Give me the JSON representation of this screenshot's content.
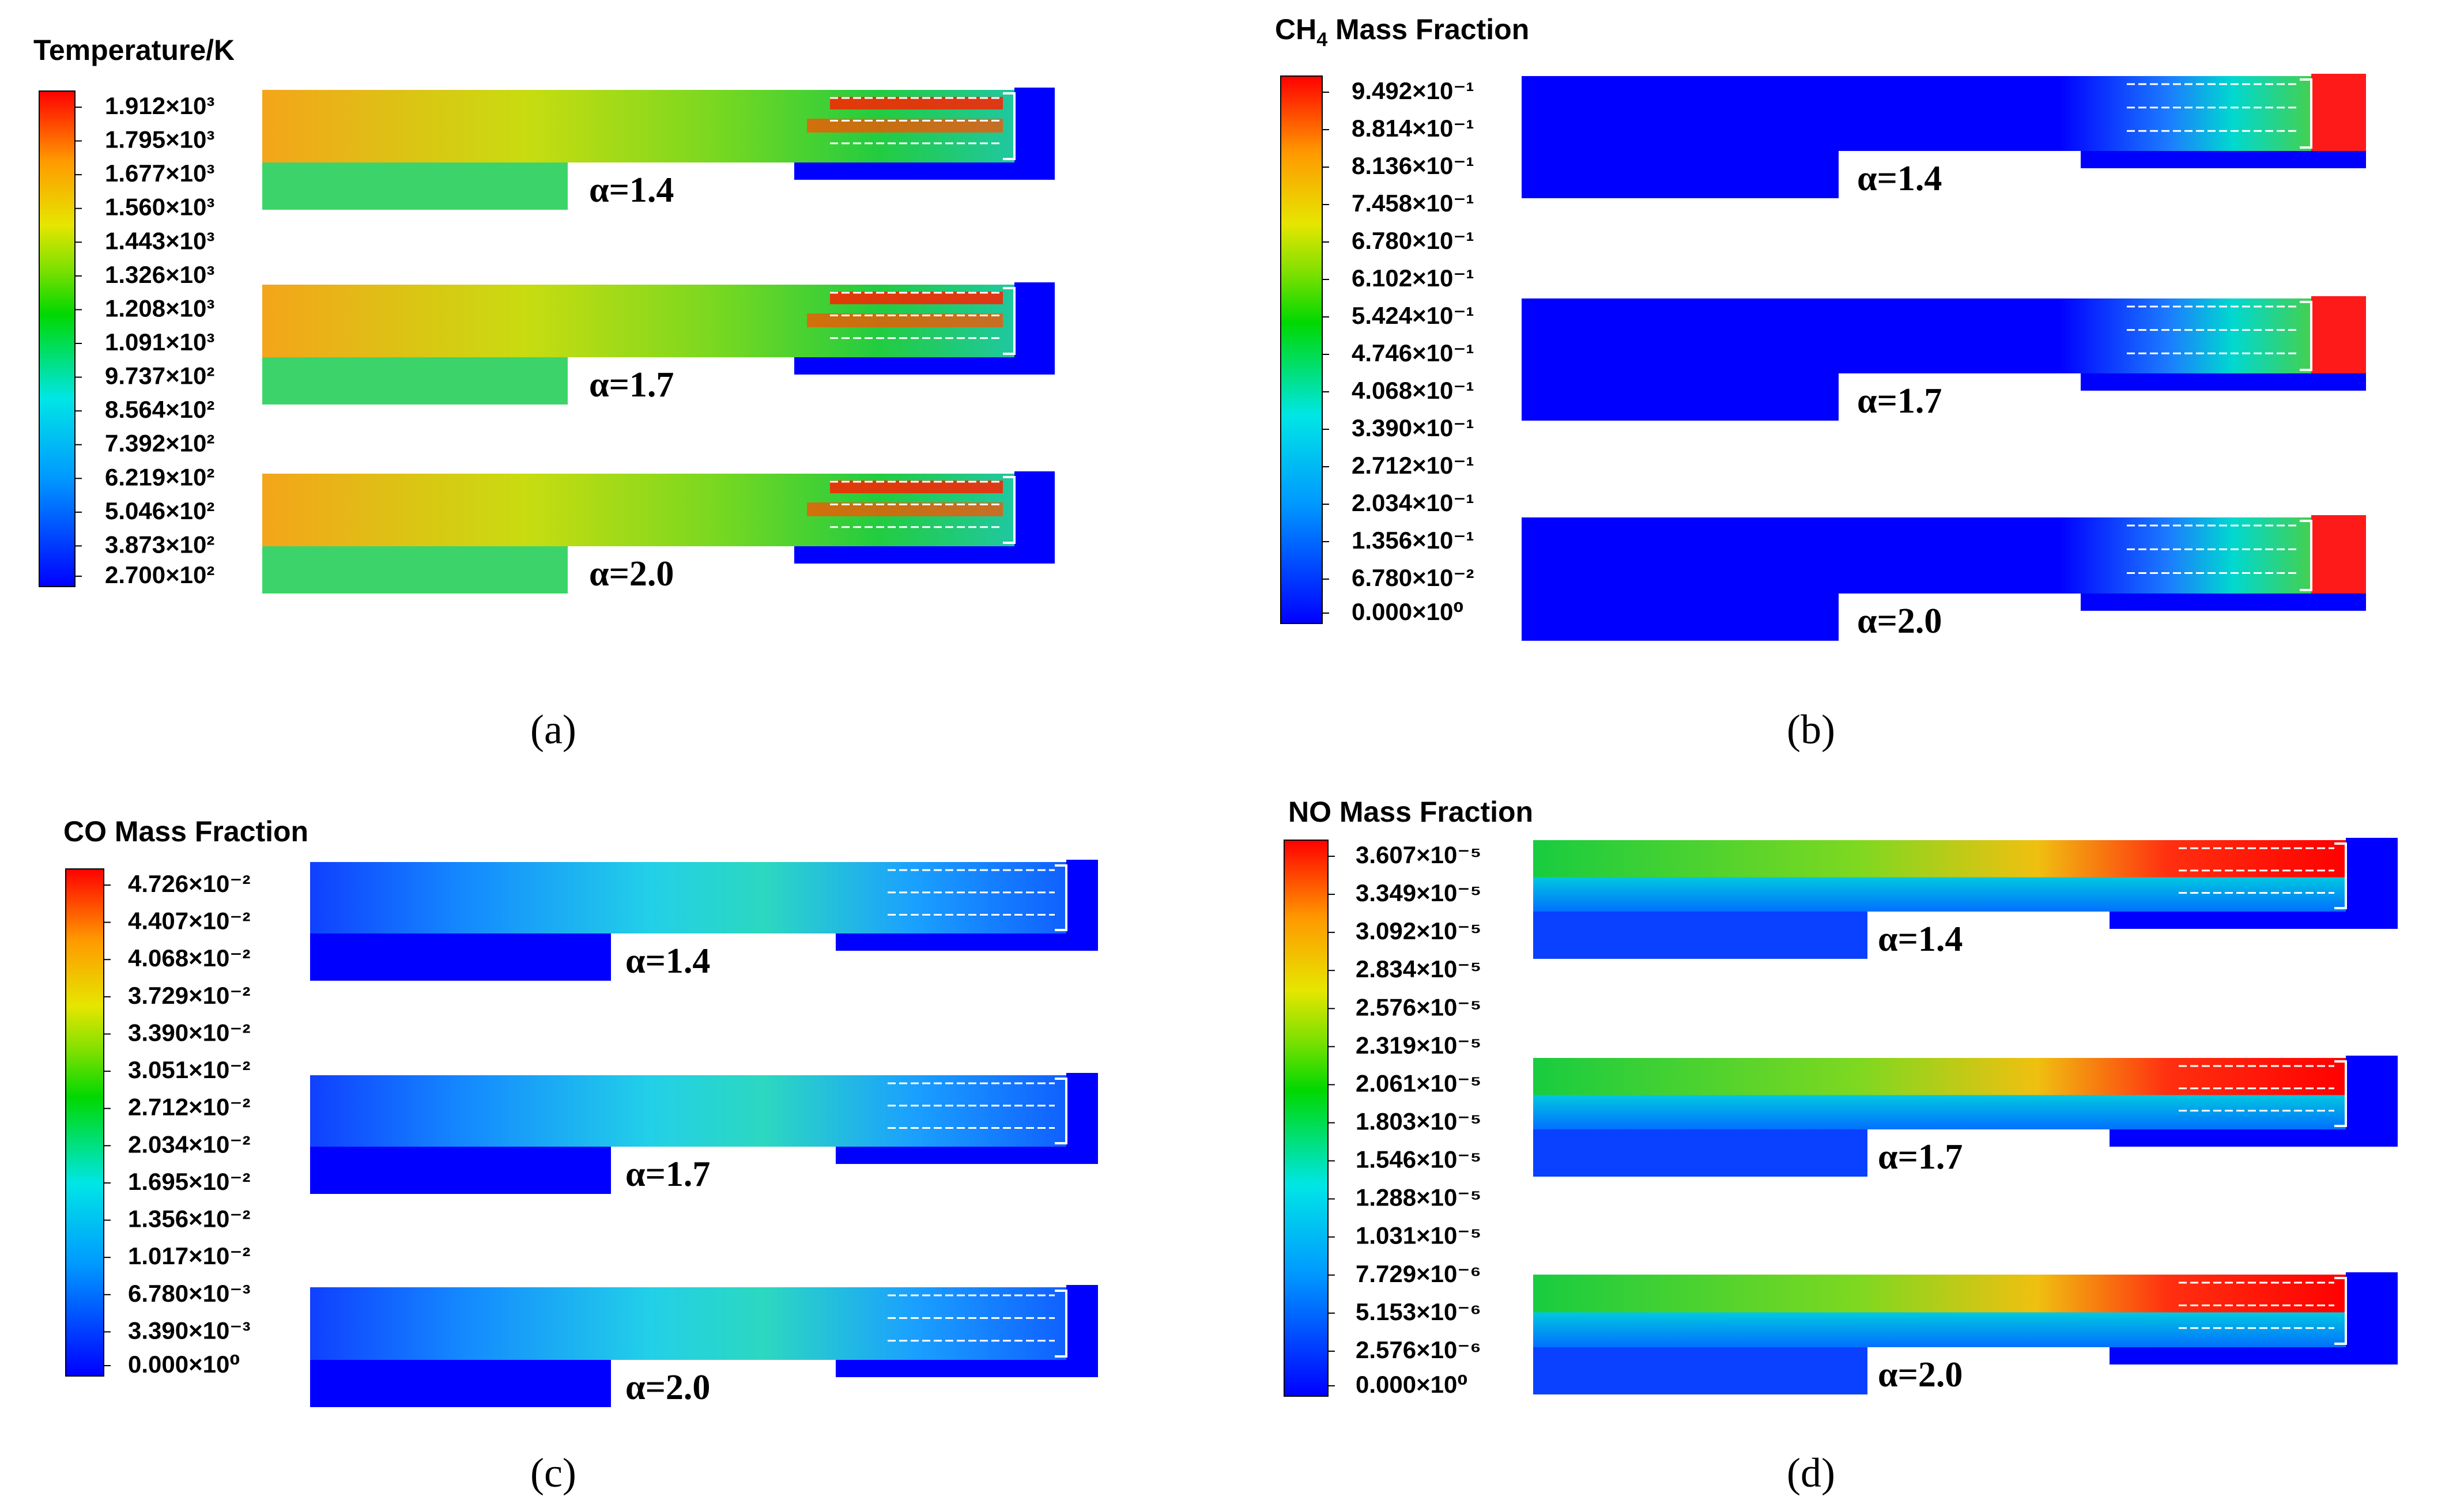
{
  "chart_data": [
    {
      "type": "heatmap",
      "panel_label": "(a)",
      "title": "Temperature/K",
      "title_parts": [
        "Temperature/K"
      ],
      "legend_ticks": [
        "1.912×10³",
        "1.795×10³",
        "1.677×10³",
        "1.560×10³",
        "1.443×10³",
        "1.326×10³",
        "1.208×10³",
        "1.091×10³",
        "9.737×10²",
        "8.564×10²",
        "7.392×10²",
        "6.219×10²",
        "5.046×10²",
        "3.873×10²",
        "2.700×10²"
      ],
      "value_range": [
        270,
        1912
      ],
      "cases": [
        {
          "label": "α=1.4"
        },
        {
          "label": "α=1.7"
        },
        {
          "label": "α=2.0"
        }
      ]
    },
    {
      "type": "heatmap",
      "panel_label": "(b)",
      "title": "CH4 Mass Fraction",
      "title_parts": [
        "CH",
        "4",
        " Mass Fraction"
      ],
      "legend_ticks": [
        "9.492×10⁻¹",
        "8.814×10⁻¹",
        "8.136×10⁻¹",
        "7.458×10⁻¹",
        "6.780×10⁻¹",
        "6.102×10⁻¹",
        "5.424×10⁻¹",
        "4.746×10⁻¹",
        "4.068×10⁻¹",
        "3.390×10⁻¹",
        "2.712×10⁻¹",
        "2.034×10⁻¹",
        "1.356×10⁻¹",
        "6.780×10⁻²",
        "0.000×10⁰"
      ],
      "value_range": [
        0,
        0.9492
      ],
      "cases": [
        {
          "label": "α=1.4"
        },
        {
          "label": "α=1.7"
        },
        {
          "label": "α=2.0"
        }
      ]
    },
    {
      "type": "heatmap",
      "panel_label": "(c)",
      "title": "CO Mass Fraction",
      "title_parts": [
        "CO Mass Fraction"
      ],
      "legend_ticks": [
        "4.726×10⁻²",
        "4.407×10⁻²",
        "4.068×10⁻²",
        "3.729×10⁻²",
        "3.390×10⁻²",
        "3.051×10⁻²",
        "2.712×10⁻²",
        "2.034×10⁻²",
        "1.695×10⁻²",
        "1.356×10⁻²",
        "1.017×10⁻²",
        "6.780×10⁻³",
        "3.390×10⁻³",
        "0.000×10⁰"
      ],
      "value_range": [
        0,
        0.04726
      ],
      "cases": [
        {
          "label": "α=1.4"
        },
        {
          "label": "α=1.7"
        },
        {
          "label": "α=2.0"
        }
      ]
    },
    {
      "type": "heatmap",
      "panel_label": "(d)",
      "title": "NO Mass Fraction",
      "title_parts": [
        "NO Mass Fraction"
      ],
      "legend_ticks": [
        "3.607×10⁻⁵",
        "3.349×10⁻⁵",
        "3.092×10⁻⁵",
        "2.834×10⁻⁵",
        "2.576×10⁻⁵",
        "2.319×10⁻⁵",
        "2.061×10⁻⁵",
        "1.803×10⁻⁵",
        "1.546×10⁻⁵",
        "1.288×10⁻⁵",
        "1.031×10⁻⁵",
        "7.729×10⁻⁶",
        "5.153×10⁻⁶",
        "2.576×10⁻⁶",
        "0.000×10⁰"
      ],
      "value_range": [
        0,
        3.607e-05
      ],
      "cases": [
        {
          "label": "α=1.4"
        },
        {
          "label": "α=1.7"
        },
        {
          "label": "α=2.0"
        }
      ]
    }
  ],
  "colors": {
    "scale": [
      "#0000ff",
      "#0099ff",
      "#00e6e6",
      "#00d800",
      "#7ee000",
      "#e6e600",
      "#ff9900",
      "#ff0000"
    ],
    "background": "#ffffff",
    "text": "#000000",
    "outline": "#ffffff"
  }
}
